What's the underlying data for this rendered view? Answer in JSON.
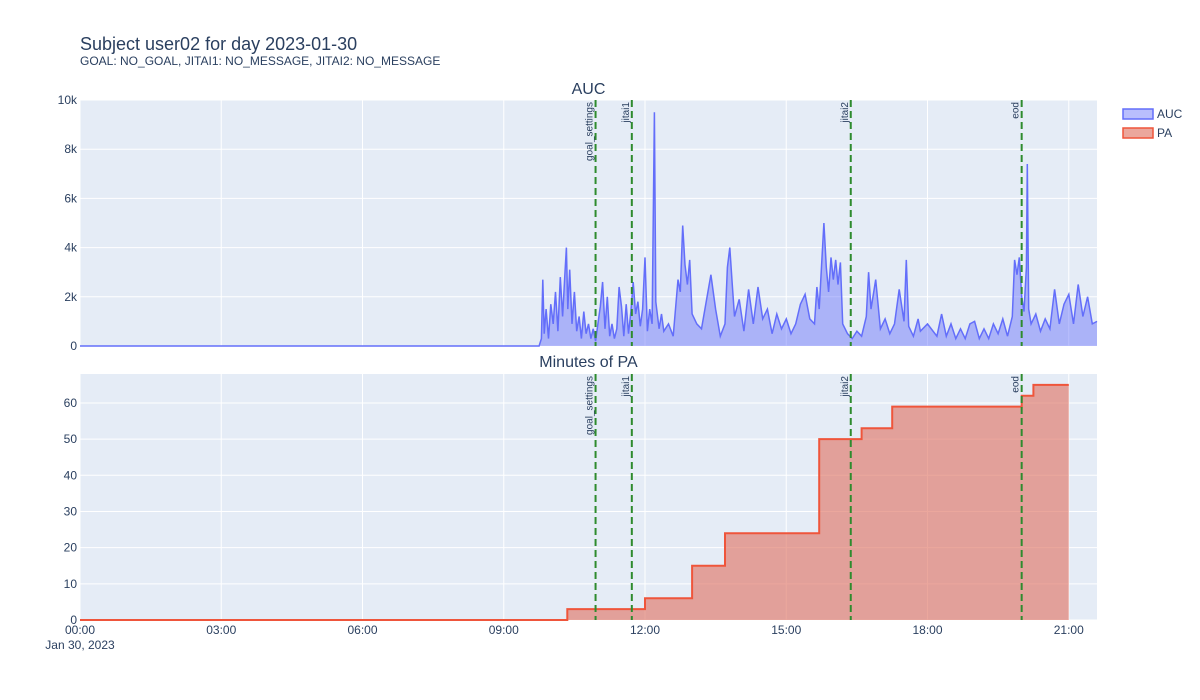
{
  "title": "Subject user02 for day 2023-01-30",
  "subtitle": "GOAL: NO_GOAL, JITAI1: NO_MESSAGE, JITAI2: NO_MESSAGE",
  "colors": {
    "plot_bg": "#E5ECF6",
    "grid": "#ffffff",
    "auc": "#636EFA",
    "auc_fill": "rgba(99,110,250,0.45)",
    "pa": "#EF553B",
    "pa_fill": "rgba(225,120,105,0.65)",
    "event_line": "#2E8B2E"
  },
  "legend": [
    {
      "name": "AUC",
      "color_key": "auc"
    },
    {
      "name": "PA",
      "color_key": "pa"
    }
  ],
  "x_axis": {
    "range_hours": [
      0,
      21.6
    ],
    "ticks": [
      {
        "hour": 0,
        "label": "00:00"
      },
      {
        "hour": 3,
        "label": "03:00"
      },
      {
        "hour": 6,
        "label": "06:00"
      },
      {
        "hour": 9,
        "label": "09:00"
      },
      {
        "hour": 12,
        "label": "12:00"
      },
      {
        "hour": 15,
        "label": "15:00"
      },
      {
        "hour": 18,
        "label": "18:00"
      },
      {
        "hour": 21,
        "label": "21:00"
      }
    ],
    "date_label": "Jan 30, 2023"
  },
  "events": [
    {
      "label": "goal_settings",
      "hour": 10.95
    },
    {
      "label": "jitai1",
      "hour": 11.72
    },
    {
      "label": "jitai2",
      "hour": 16.37
    },
    {
      "label": "eod",
      "hour": 20.0
    }
  ],
  "chart_data": [
    {
      "type": "area",
      "title": "AUC",
      "series_name": "AUC",
      "ylim": [
        0,
        10000
      ],
      "y_ticks": [
        {
          "value": 0,
          "label": "0"
        },
        {
          "value": 2000,
          "label": "2k"
        },
        {
          "value": 4000,
          "label": "4k"
        },
        {
          "value": 6000,
          "label": "6k"
        },
        {
          "value": 8000,
          "label": "8k"
        },
        {
          "value": 10000,
          "label": "10k"
        }
      ],
      "points": [
        [
          0,
          0
        ],
        [
          9.75,
          0
        ],
        [
          9.8,
          300
        ],
        [
          9.83,
          2700
        ],
        [
          9.86,
          500
        ],
        [
          9.9,
          1500
        ],
        [
          9.95,
          300
        ],
        [
          10.0,
          1700
        ],
        [
          10.05,
          900
        ],
        [
          10.1,
          2200
        ],
        [
          10.15,
          600
        ],
        [
          10.2,
          2800
        ],
        [
          10.25,
          1200
        ],
        [
          10.3,
          3000
        ],
        [
          10.33,
          4000
        ],
        [
          10.36,
          1500
        ],
        [
          10.4,
          3100
        ],
        [
          10.45,
          900
        ],
        [
          10.5,
          2200
        ],
        [
          10.55,
          600
        ],
        [
          10.6,
          1200
        ],
        [
          10.65,
          300
        ],
        [
          10.7,
          1400
        ],
        [
          10.75,
          500
        ],
        [
          10.8,
          900
        ],
        [
          10.85,
          300
        ],
        [
          10.9,
          700
        ],
        [
          10.95,
          200
        ],
        [
          11.0,
          900
        ],
        [
          11.05,
          1600
        ],
        [
          11.1,
          2600
        ],
        [
          11.15,
          700
        ],
        [
          11.2,
          2000
        ],
        [
          11.25,
          400
        ],
        [
          11.3,
          900
        ],
        [
          11.35,
          300
        ],
        [
          11.4,
          700
        ],
        [
          11.45,
          2400
        ],
        [
          11.5,
          1600
        ],
        [
          11.55,
          400
        ],
        [
          11.6,
          1700
        ],
        [
          11.65,
          500
        ],
        [
          11.7,
          1400
        ],
        [
          11.75,
          2600
        ],
        [
          11.8,
          1300
        ],
        [
          11.85,
          1800
        ],
        [
          11.9,
          800
        ],
        [
          11.95,
          1500
        ],
        [
          12.0,
          3600
        ],
        [
          12.05,
          600
        ],
        [
          12.1,
          1500
        ],
        [
          12.15,
          900
        ],
        [
          12.2,
          9500
        ],
        [
          12.23,
          1800
        ],
        [
          12.3,
          700
        ],
        [
          12.35,
          1300
        ],
        [
          12.4,
          600
        ],
        [
          12.5,
          900
        ],
        [
          12.6,
          400
        ],
        [
          12.7,
          2700
        ],
        [
          12.75,
          2200
        ],
        [
          12.8,
          4900
        ],
        [
          12.85,
          3300
        ],
        [
          12.9,
          2500
        ],
        [
          12.95,
          3500
        ],
        [
          13.0,
          1300
        ],
        [
          13.1,
          900
        ],
        [
          13.2,
          700
        ],
        [
          13.3,
          1800
        ],
        [
          13.4,
          2900
        ],
        [
          13.5,
          1500
        ],
        [
          13.6,
          400
        ],
        [
          13.7,
          900
        ],
        [
          13.75,
          3200
        ],
        [
          13.8,
          4000
        ],
        [
          13.85,
          2600
        ],
        [
          13.9,
          1200
        ],
        [
          14.0,
          1900
        ],
        [
          14.1,
          600
        ],
        [
          14.2,
          2300
        ],
        [
          14.3,
          900
        ],
        [
          14.4,
          2400
        ],
        [
          14.5,
          1100
        ],
        [
          14.6,
          1500
        ],
        [
          14.7,
          500
        ],
        [
          14.8,
          1300
        ],
        [
          14.9,
          700
        ],
        [
          15.0,
          1100
        ],
        [
          15.1,
          500
        ],
        [
          15.2,
          900
        ],
        [
          15.3,
          1700
        ],
        [
          15.4,
          2100
        ],
        [
          15.5,
          1100
        ],
        [
          15.6,
          900
        ],
        [
          15.65,
          2400
        ],
        [
          15.7,
          1500
        ],
        [
          15.75,
          3300
        ],
        [
          15.8,
          5000
        ],
        [
          15.85,
          3200
        ],
        [
          15.9,
          2200
        ],
        [
          15.95,
          3600
        ],
        [
          16.0,
          2700
        ],
        [
          16.05,
          3500
        ],
        [
          16.1,
          2500
        ],
        [
          16.15,
          3400
        ],
        [
          16.2,
          900
        ],
        [
          16.3,
          500
        ],
        [
          16.4,
          300
        ],
        [
          16.5,
          600
        ],
        [
          16.6,
          400
        ],
        [
          16.7,
          1200
        ],
        [
          16.75,
          3000
        ],
        [
          16.8,
          1500
        ],
        [
          16.9,
          2700
        ],
        [
          17.0,
          700
        ],
        [
          17.1,
          1100
        ],
        [
          17.2,
          500
        ],
        [
          17.3,
          900
        ],
        [
          17.4,
          2300
        ],
        [
          17.5,
          1000
        ],
        [
          17.55,
          3500
        ],
        [
          17.6,
          800
        ],
        [
          17.7,
          400
        ],
        [
          17.8,
          1100
        ],
        [
          17.85,
          600
        ],
        [
          18.0,
          900
        ],
        [
          18.2,
          400
        ],
        [
          18.3,
          1300
        ],
        [
          18.4,
          400
        ],
        [
          18.5,
          900
        ],
        [
          18.6,
          300
        ],
        [
          18.7,
          700
        ],
        [
          18.8,
          300
        ],
        [
          18.9,
          900
        ],
        [
          19.0,
          1000
        ],
        [
          19.1,
          300
        ],
        [
          19.2,
          700
        ],
        [
          19.3,
          300
        ],
        [
          19.4,
          900
        ],
        [
          19.5,
          500
        ],
        [
          19.6,
          1100
        ],
        [
          19.7,
          400
        ],
        [
          19.8,
          1200
        ],
        [
          19.85,
          3500
        ],
        [
          19.9,
          2900
        ],
        [
          19.95,
          3600
        ],
        [
          20.0,
          2000
        ],
        [
          20.05,
          1400
        ],
        [
          20.1,
          3200
        ],
        [
          20.12,
          7400
        ],
        [
          20.15,
          1500
        ],
        [
          20.2,
          900
        ],
        [
          20.3,
          1300
        ],
        [
          20.4,
          600
        ],
        [
          20.5,
          1100
        ],
        [
          20.6,
          700
        ],
        [
          20.7,
          2300
        ],
        [
          20.8,
          900
        ],
        [
          20.9,
          1700
        ],
        [
          21.0,
          2100
        ],
        [
          21.1,
          900
        ],
        [
          21.2,
          2500
        ],
        [
          21.3,
          1200
        ],
        [
          21.4,
          2000
        ],
        [
          21.5,
          900
        ],
        [
          21.6,
          1000
        ]
      ]
    },
    {
      "type": "area",
      "title": "Minutes of PA",
      "series_name": "PA",
      "line_shape": "step",
      "ylim": [
        0,
        68
      ],
      "y_ticks": [
        {
          "value": 0,
          "label": "0"
        },
        {
          "value": 10,
          "label": "10"
        },
        {
          "value": 20,
          "label": "20"
        },
        {
          "value": 30,
          "label": "30"
        },
        {
          "value": 40,
          "label": "40"
        },
        {
          "value": 50,
          "label": "50"
        },
        {
          "value": 60,
          "label": "60"
        }
      ],
      "steps": [
        [
          0,
          0
        ],
        [
          10.35,
          3
        ],
        [
          12.0,
          6
        ],
        [
          13.0,
          15
        ],
        [
          13.7,
          24
        ],
        [
          15.7,
          50
        ],
        [
          16.6,
          53
        ],
        [
          17.25,
          59
        ],
        [
          20.0,
          62
        ],
        [
          20.25,
          65
        ],
        [
          21.0,
          65
        ]
      ]
    }
  ]
}
